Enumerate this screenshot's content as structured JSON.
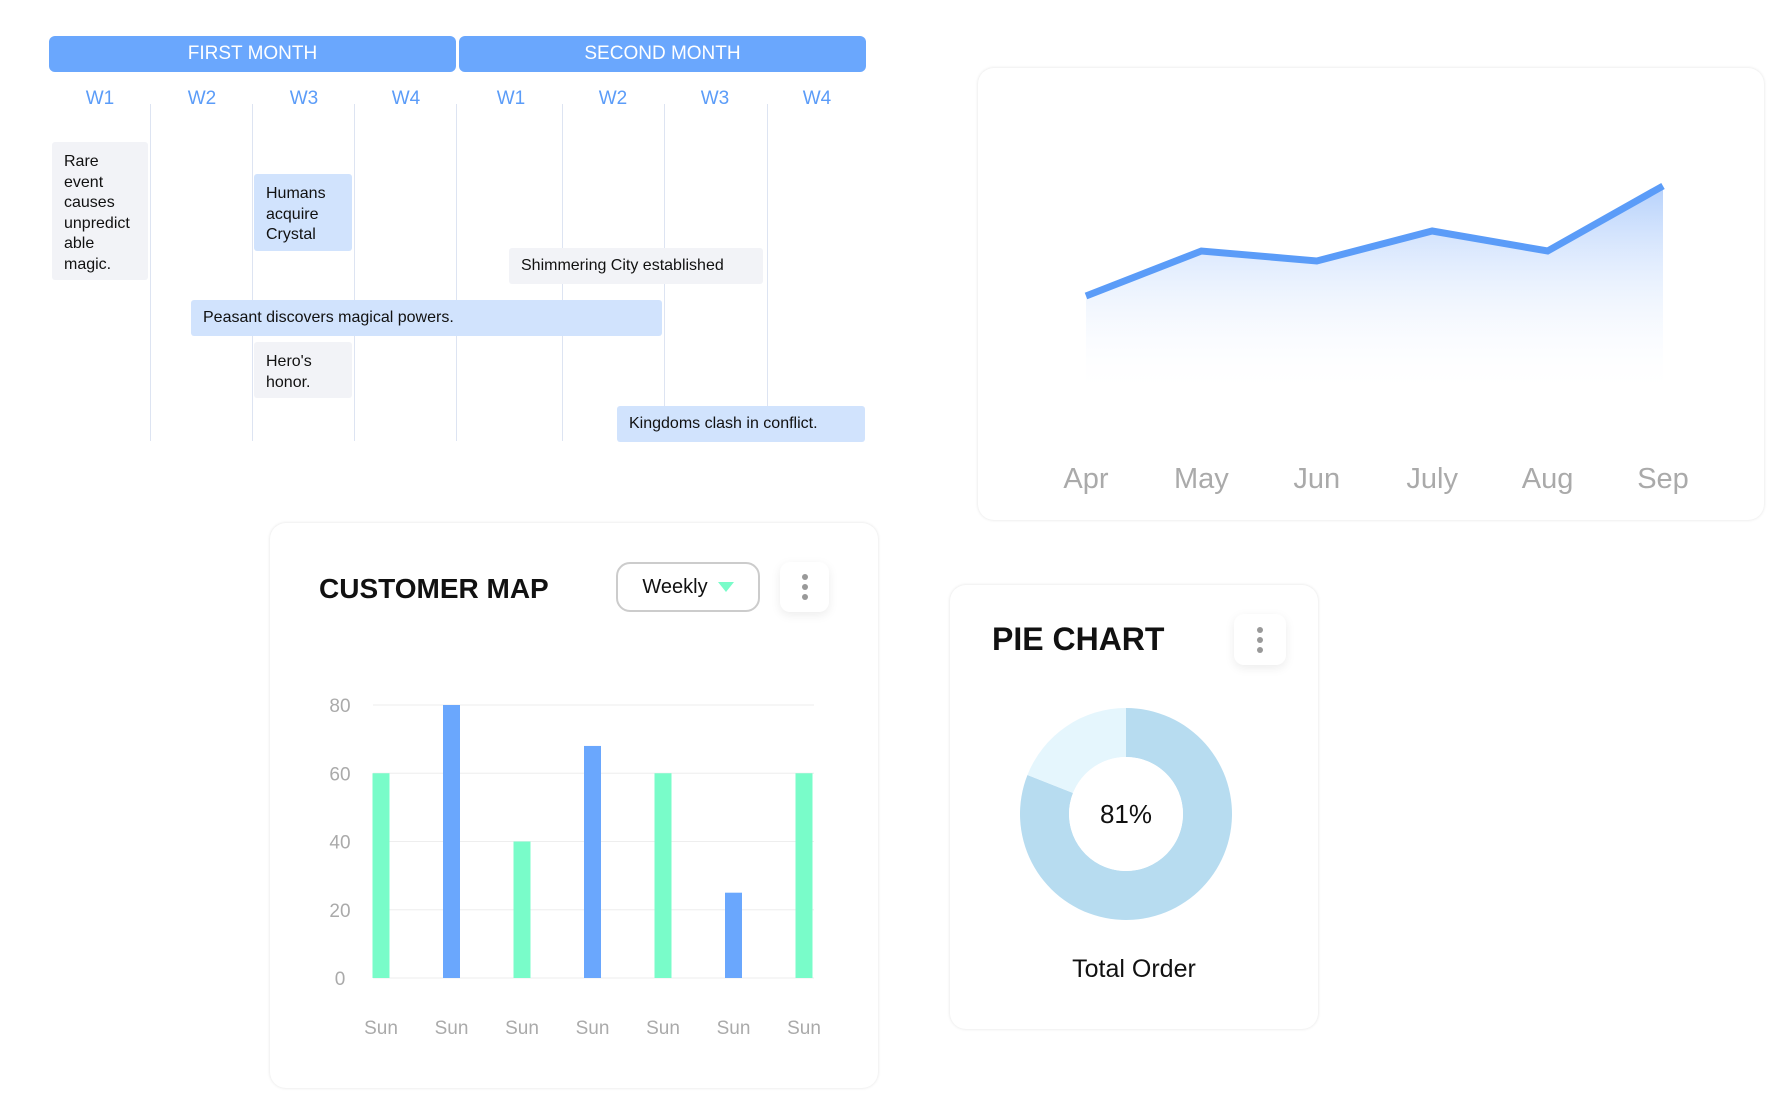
{
  "timeline": {
    "months": [
      "FIRST MONTH",
      "SECOND MONTH"
    ],
    "weeks": [
      "W1",
      "W2",
      "W3",
      "W4",
      "W1",
      "W2",
      "W3",
      "W4"
    ],
    "events": [
      {
        "text": "Rare event causes unpredict able magic.",
        "lines": [
          "Rare",
          "event",
          "causes",
          "unpredict",
          "able",
          "magic."
        ]
      },
      {
        "text": "Humans acquire Crystal",
        "lines": [
          "Humans",
          "acquire",
          "Crystal"
        ]
      },
      {
        "text": "Shimmering City established"
      },
      {
        "text": "Peasant discovers magical powers."
      },
      {
        "text": "Hero's honor.",
        "lines": [
          "Hero's",
          "honor."
        ]
      },
      {
        "text": "Kingdoms clash in conflict."
      }
    ]
  },
  "chart_data": [
    {
      "type": "area",
      "title": "",
      "categories": [
        "Apr",
        "May",
        "Jun",
        "July",
        "Aug",
        "Sep"
      ],
      "values": [
        20,
        29,
        27,
        33,
        29,
        42
      ],
      "ylim": [
        0,
        50
      ],
      "color": "#5b9cf8"
    },
    {
      "type": "bar",
      "title": "CUSTOMER MAP",
      "categories": [
        "Sun",
        "Sun",
        "Sun",
        "Sun",
        "Sun",
        "Sun",
        "Sun"
      ],
      "values": [
        60,
        80,
        40,
        68,
        60,
        25,
        60
      ],
      "colors": [
        "#79fcc9",
        "#6aa7fd",
        "#79fcc9",
        "#6aa7fd",
        "#79fcc9",
        "#6aa7fd",
        "#79fcc9"
      ],
      "yticks": [
        0,
        20,
        40,
        60,
        80
      ],
      "ylim": [
        0,
        80
      ]
    },
    {
      "type": "pie",
      "title": "PIE CHART",
      "value_percent": 81,
      "center_label": "81%",
      "caption": "Total Order",
      "colors": [
        "#b7dcf0",
        "#e5f6fd"
      ]
    }
  ],
  "customer_map": {
    "title": "CUSTOMER MAP",
    "period_select": "Weekly"
  },
  "pie": {
    "title": "PIE CHART",
    "center_label": "81%",
    "caption": "Total Order"
  }
}
